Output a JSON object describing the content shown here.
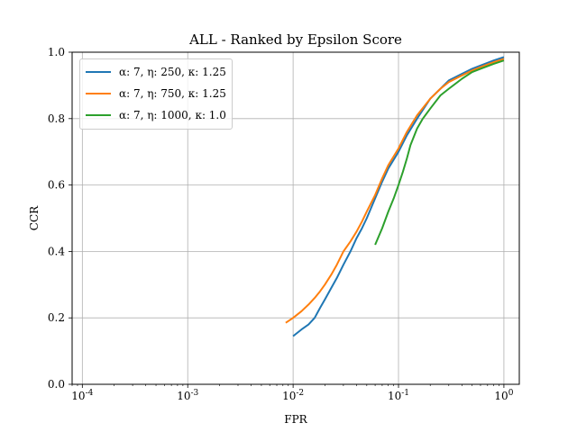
{
  "chart_data": {
    "type": "line",
    "title": "ALL - Ranked by Epsilon Score",
    "xlabel": "FPR",
    "ylabel": "CCR",
    "xscale": "log",
    "xlim": [
      8e-05,
      1.4
    ],
    "ylim": [
      0.0,
      1.0
    ],
    "x_tick_labels": [
      "10^-4",
      "10^-3",
      "10^-2",
      "10^-1",
      "10^0"
    ],
    "x_tick_values": [
      0.0001,
      0.001,
      0.01,
      0.1,
      1
    ],
    "y_tick_labels": [
      "0.0",
      "0.2",
      "0.4",
      "0.6",
      "0.8",
      "1.0"
    ],
    "y_tick_values": [
      0.0,
      0.2,
      0.4,
      0.6,
      0.8,
      1.0
    ],
    "grid": true,
    "legend_position": "top-left",
    "series": [
      {
        "name": "α: 7,  η: 250,  κ: 1.25",
        "color": "#1f77b4",
        "x": [
          0.01,
          0.012,
          0.014,
          0.016,
          0.018,
          0.02,
          0.023,
          0.026,
          0.03,
          0.035,
          0.04,
          0.045,
          0.05,
          0.06,
          0.07,
          0.08,
          0.1,
          0.12,
          0.15,
          0.2,
          0.25,
          0.3,
          0.4,
          0.5,
          0.6,
          0.8,
          1.0
        ],
        "y": [
          0.145,
          0.165,
          0.18,
          0.2,
          0.23,
          0.255,
          0.29,
          0.32,
          0.36,
          0.4,
          0.44,
          0.47,
          0.5,
          0.56,
          0.61,
          0.65,
          0.7,
          0.75,
          0.8,
          0.86,
          0.89,
          0.915,
          0.935,
          0.95,
          0.96,
          0.975,
          0.985
        ]
      },
      {
        "name": "α: 7,  η: 750,  κ: 1.25",
        "color": "#ff7f0e",
        "x": [
          0.0085,
          0.01,
          0.012,
          0.014,
          0.016,
          0.018,
          0.02,
          0.023,
          0.026,
          0.03,
          0.035,
          0.04,
          0.045,
          0.05,
          0.06,
          0.07,
          0.08,
          0.1,
          0.12,
          0.15,
          0.2,
          0.25,
          0.3,
          0.4,
          0.5,
          0.6,
          0.8,
          1.0
        ],
        "y": [
          0.185,
          0.2,
          0.22,
          0.24,
          0.26,
          0.28,
          0.3,
          0.33,
          0.36,
          0.4,
          0.43,
          0.46,
          0.49,
          0.52,
          0.57,
          0.62,
          0.66,
          0.71,
          0.76,
          0.81,
          0.86,
          0.89,
          0.91,
          0.93,
          0.945,
          0.955,
          0.97,
          0.98
        ]
      },
      {
        "name": "α: 7,  η: 1000,  κ: 1.0",
        "color": "#2ca02c",
        "x": [
          0.06,
          0.07,
          0.08,
          0.09,
          0.1,
          0.11,
          0.12,
          0.13,
          0.15,
          0.17,
          0.2,
          0.25,
          0.3,
          0.4,
          0.5,
          0.6,
          0.8,
          1.0
        ],
        "y": [
          0.42,
          0.47,
          0.52,
          0.56,
          0.6,
          0.64,
          0.68,
          0.72,
          0.77,
          0.8,
          0.83,
          0.87,
          0.89,
          0.92,
          0.94,
          0.95,
          0.965,
          0.975
        ]
      }
    ]
  }
}
